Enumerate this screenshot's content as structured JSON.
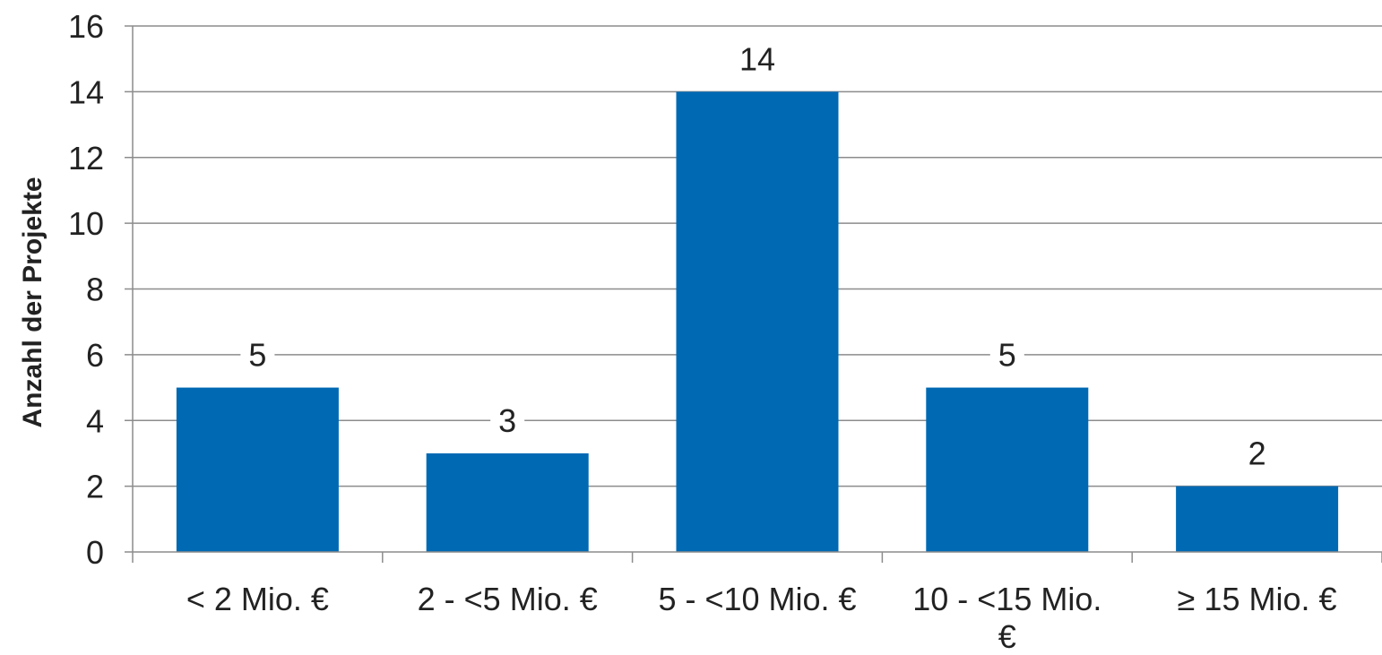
{
  "chart_data": {
    "type": "bar",
    "categories": [
      [
        "< 2 Mio. €"
      ],
      [
        "2 - <5 Mio. €"
      ],
      [
        "5 - <10 Mio. €"
      ],
      [
        "10 - <15 Mio.",
        "€"
      ],
      [
        "≥ 15 Mio. €"
      ]
    ],
    "values": [
      5,
      3,
      14,
      5,
      2
    ],
    "ylabel": "Anzahl der Projekte",
    "xlabel": "",
    "ylim": [
      0,
      16
    ],
    "yticks": [
      0,
      2,
      4,
      6,
      8,
      10,
      12,
      14,
      16
    ],
    "grid": true,
    "data_labels": true,
    "colors": {
      "bar": "#0069b4",
      "grid": "#8c8c8c",
      "axis": "#8c8c8c"
    }
  }
}
